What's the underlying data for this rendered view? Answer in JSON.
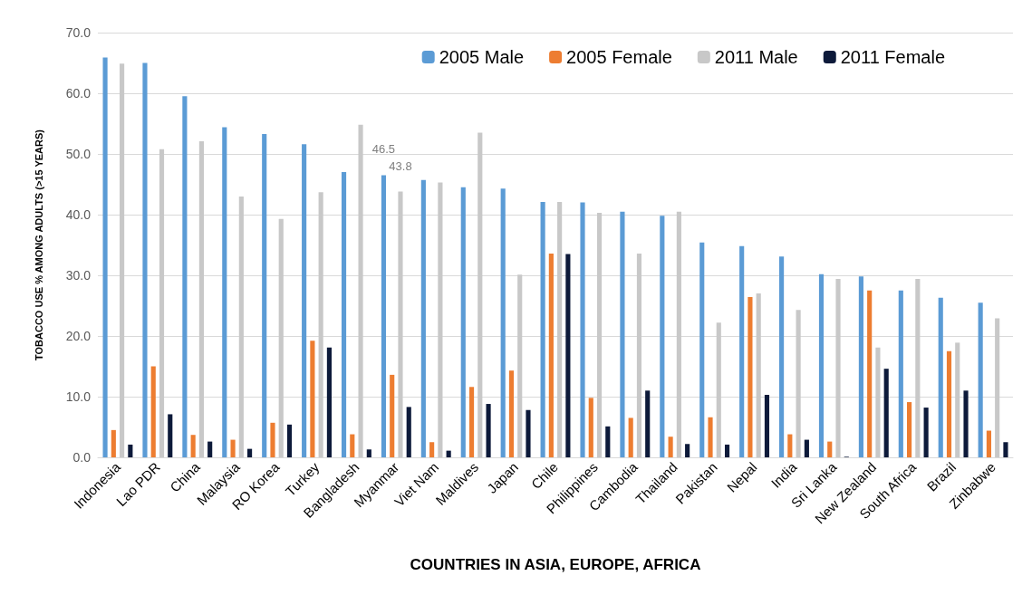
{
  "chart_data": {
    "type": "bar",
    "xlabel": "COUNTRIES IN ASIA, EUROPE, AFRICA",
    "ylabel": "TOBACCO USE % AMONG ADULTS (>15 YEARS)",
    "categories": [
      "Indonesia",
      "Lao PDR",
      "China",
      "Malaysia",
      "RO Korea",
      "Turkey",
      "Bangladesh",
      "Myanmar",
      "Viet Nam",
      "Maldives",
      "Japan",
      "Chile",
      "Philippines",
      "Cambodia",
      "Thailand",
      "Pakistan",
      "Nepal",
      "India",
      "Sri Lanka",
      "New Zealand",
      "South Africa",
      "Brazil",
      "Zinbabwe"
    ],
    "series": [
      {
        "name": "2005 Male",
        "color": "#5b9bd5",
        "values": [
          65.9,
          65.0,
          59.5,
          54.4,
          53.3,
          51.6,
          47.0,
          46.5,
          45.7,
          44.5,
          44.3,
          42.1,
          42.0,
          40.5,
          39.8,
          35.4,
          34.8,
          33.1,
          30.2,
          29.8,
          27.5,
          26.3,
          25.5
        ],
        "value_labels": [
          null,
          null,
          null,
          null,
          null,
          null,
          null,
          "46.5",
          null,
          null,
          null,
          null,
          null,
          null,
          null,
          null,
          null,
          null,
          null,
          null,
          null,
          null,
          null
        ]
      },
      {
        "name": "2005 Female",
        "color": "#ed7d31",
        "values": [
          4.5,
          15.0,
          3.7,
          2.9,
          5.7,
          19.2,
          3.8,
          13.6,
          2.5,
          11.6,
          14.3,
          33.6,
          9.8,
          6.5,
          3.4,
          6.6,
          26.4,
          3.8,
          2.6,
          27.5,
          9.1,
          17.5,
          4.4
        ]
      },
      {
        "name": "2011 Male",
        "color": "#c8c8c8",
        "values": [
          64.9,
          50.8,
          52.1,
          43.0,
          39.3,
          43.7,
          54.8,
          43.8,
          45.3,
          53.5,
          30.1,
          42.1,
          40.3,
          33.6,
          40.5,
          22.2,
          27.0,
          24.3,
          29.4,
          18.1,
          29.4,
          18.9,
          22.9
        ],
        "value_labels": [
          null,
          null,
          null,
          null,
          null,
          null,
          null,
          "43.8",
          null,
          null,
          null,
          null,
          null,
          null,
          null,
          null,
          null,
          null,
          null,
          null,
          null,
          null,
          null
        ]
      },
      {
        "name": "2011 Female",
        "color": "#0d1a3a",
        "values": [
          2.1,
          7.1,
          2.6,
          1.4,
          5.4,
          18.1,
          1.3,
          8.3,
          1.1,
          8.8,
          7.8,
          33.5,
          5.1,
          11.0,
          2.2,
          2.1,
          10.3,
          2.9,
          0.1,
          14.6,
          8.2,
          11.0,
          2.5
        ]
      }
    ],
    "ylim": [
      0,
      70
    ],
    "yticks": [
      "0.0",
      "10.0",
      "20.0",
      "30.0",
      "40.0",
      "50.0",
      "60.0",
      "70.0"
    ],
    "grid": "y",
    "legend": "top right"
  }
}
